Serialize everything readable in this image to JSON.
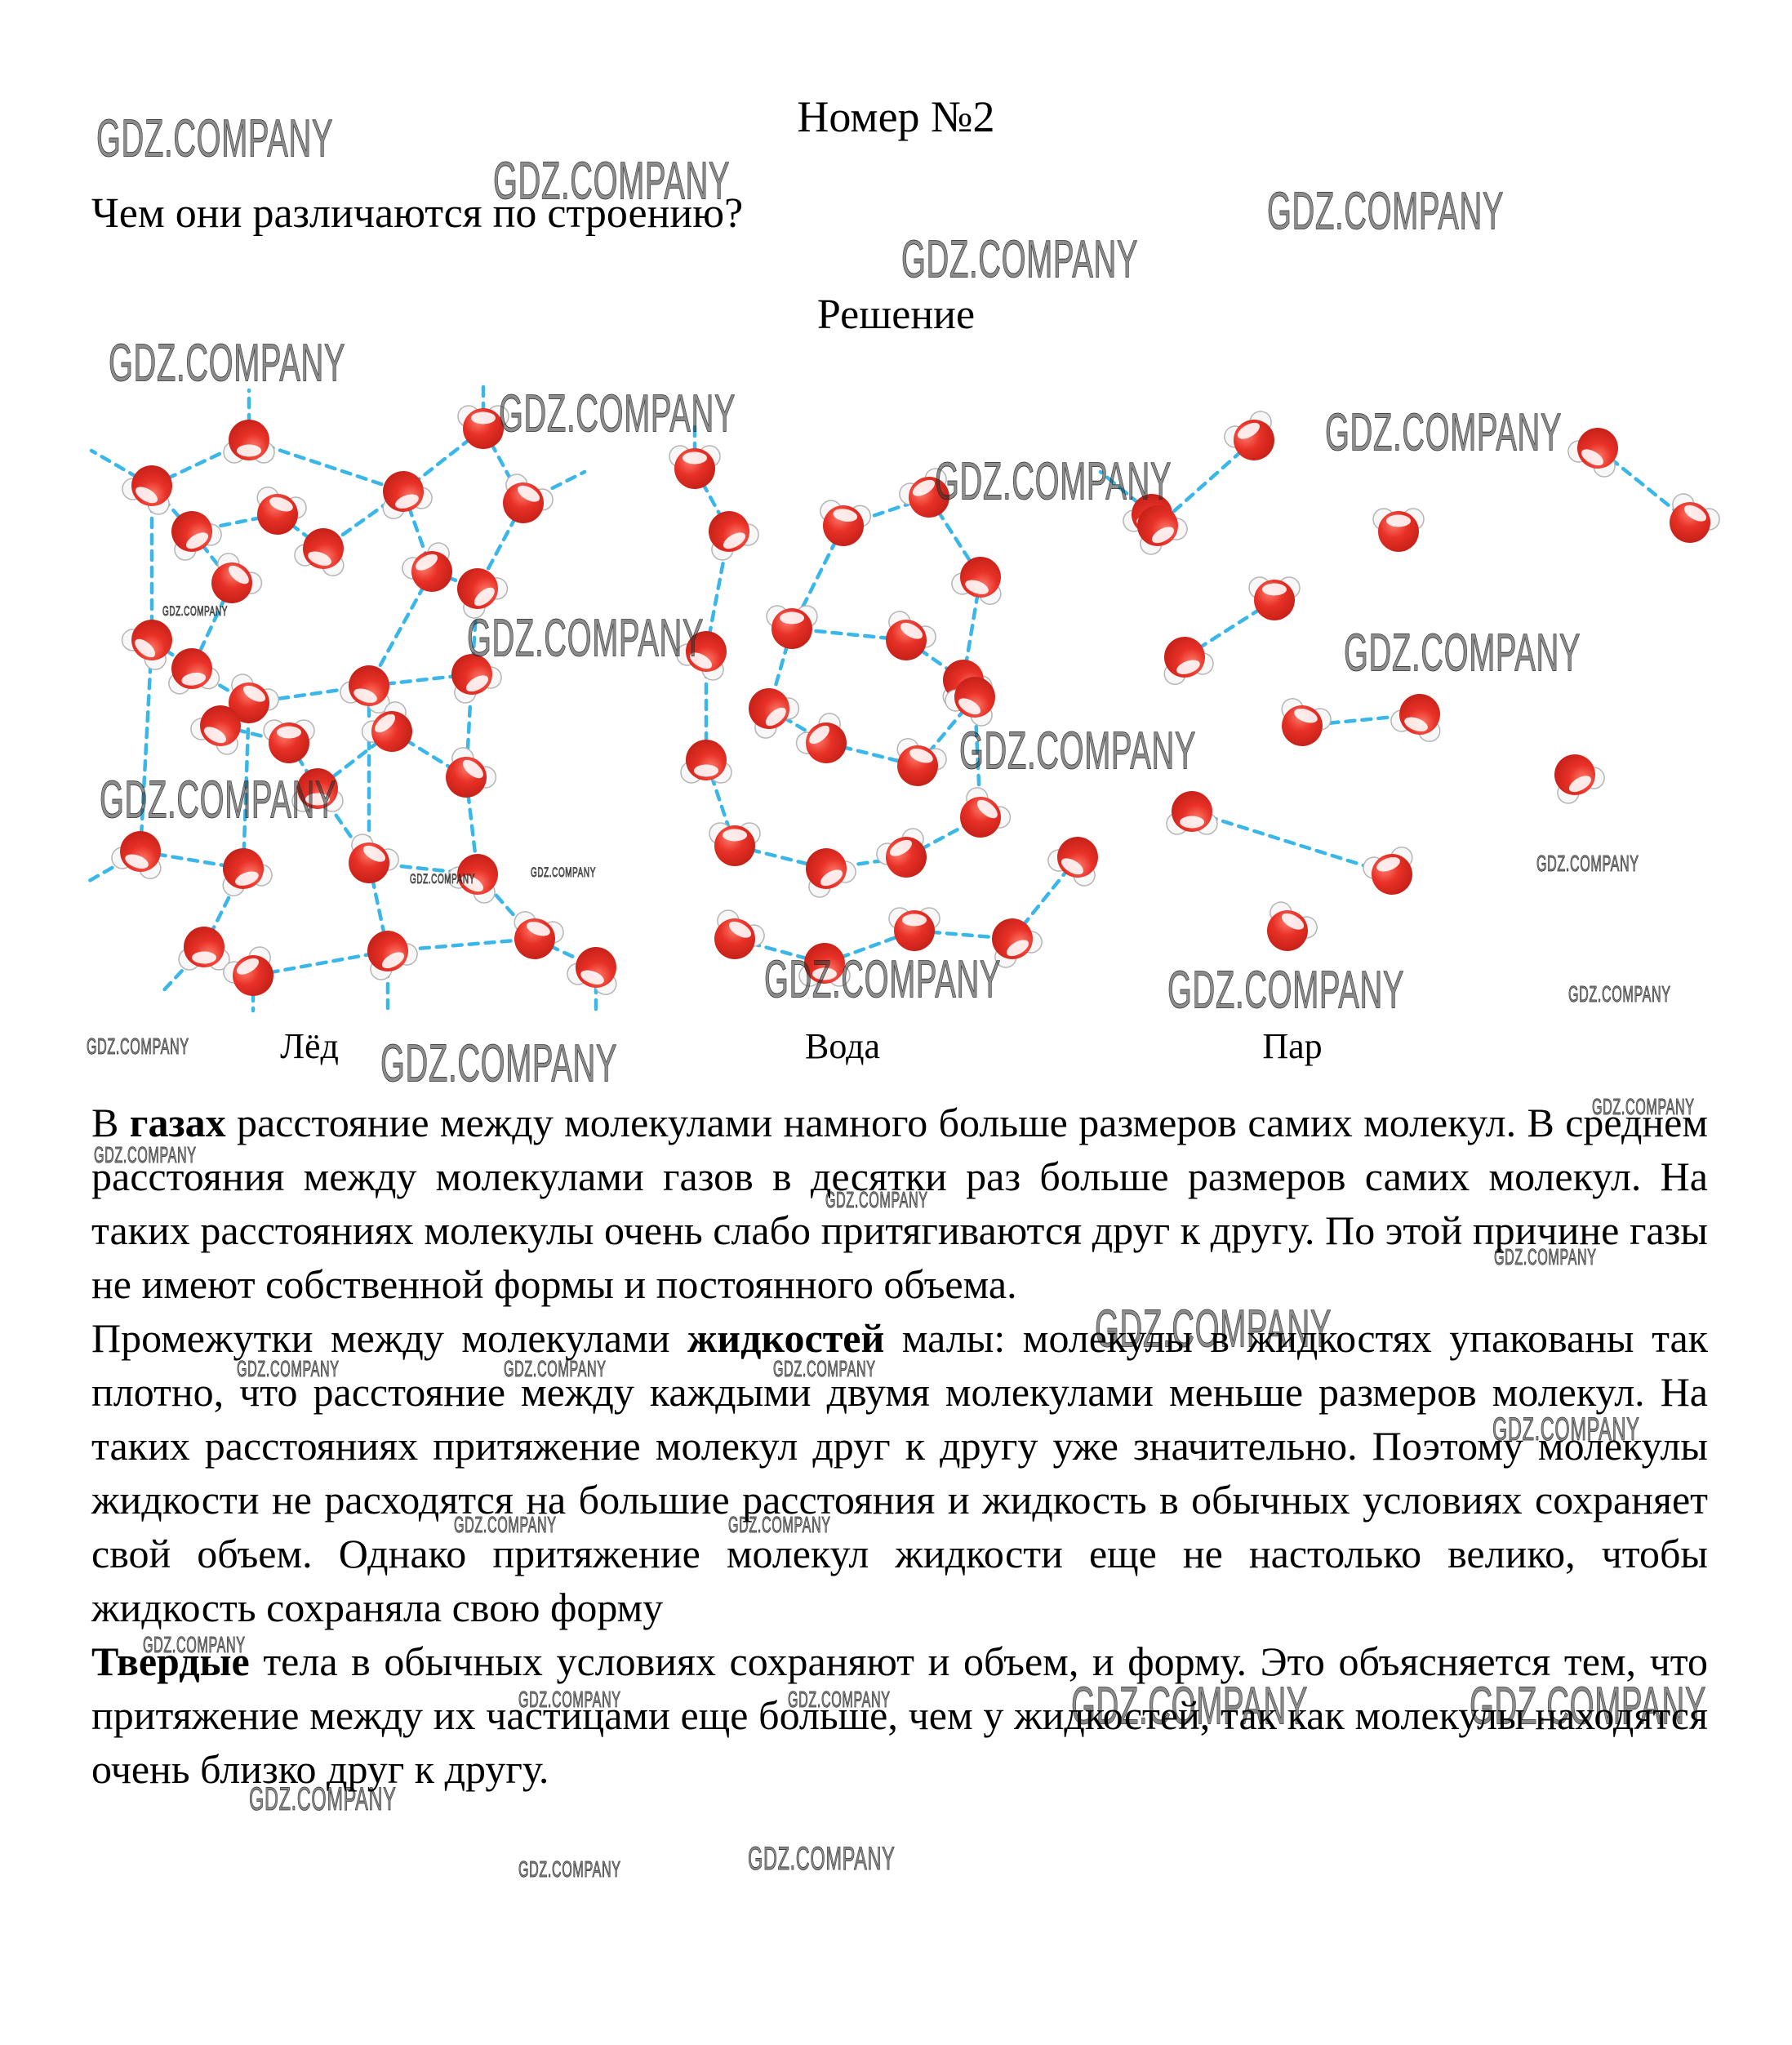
{
  "page": {
    "title": "Номер №2",
    "question": "Чем они различаются по строению?",
    "solution_heading": "Решение"
  },
  "watermarks": {
    "text": "GDZ.COMPANY",
    "positions": [
      [
        118,
        170,
        "lg"
      ],
      [
        604,
        222,
        "lg"
      ],
      [
        1552,
        259,
        "lg"
      ],
      [
        1104,
        318,
        "lg"
      ],
      [
        133,
        445,
        "lg"
      ],
      [
        611,
        507,
        "lg"
      ],
      [
        1623,
        530,
        "lg"
      ],
      [
        1145,
        590,
        "lg"
      ],
      [
        572,
        782,
        "lg"
      ],
      [
        1646,
        800,
        "lg"
      ],
      [
        1175,
        920,
        "lg"
      ],
      [
        122,
        980,
        "lg"
      ],
      [
        936,
        1200,
        "lg"
      ],
      [
        1430,
        1213,
        "lg"
      ],
      [
        466,
        1303,
        "lg"
      ],
      [
        1341,
        1628,
        "lg"
      ],
      [
        1312,
        2090,
        "lg"
      ],
      [
        1800,
        2090,
        "lg"
      ],
      [
        305,
        2205,
        "md"
      ],
      [
        916,
        2278,
        "md"
      ],
      [
        1828,
        1752,
        "md"
      ],
      [
        115,
        1415,
        "sm"
      ],
      [
        1011,
        1470,
        "sm"
      ],
      [
        1950,
        1356,
        "sm"
      ],
      [
        1830,
        1540,
        "sm"
      ],
      [
        290,
        1677,
        "sm"
      ],
      [
        617,
        1677,
        "sm"
      ],
      [
        947,
        1677,
        "sm"
      ],
      [
        556,
        1868,
        "sm"
      ],
      [
        892,
        1868,
        "sm"
      ],
      [
        175,
        2015,
        "sm"
      ],
      [
        635,
        2082,
        "sm"
      ],
      [
        965,
        2082,
        "sm"
      ],
      [
        635,
        2290,
        "sm"
      ],
      [
        1921,
        1218,
        "sm"
      ],
      [
        1882,
        1058,
        "sm"
      ],
      [
        106,
        1282,
        "sm"
      ],
      [
        199,
        750,
        "xs"
      ],
      [
        502,
        1078,
        "xs"
      ],
      [
        650,
        1070,
        "xs"
      ]
    ]
  },
  "diagram": {
    "labels": [
      {
        "text": "Лёд"
      },
      {
        "text": "Вода"
      },
      {
        "text": "Пар"
      }
    ],
    "colors": {
      "oxygen_light": "#ff7a6b",
      "oxygen": "#e83127",
      "oxygen_dark": "#c21f17",
      "hydrogen": "#f7f7f7",
      "hydrogen_stroke": "#b5b5b5",
      "bond": "#3ab7e8"
    },
    "panels": [
      {
        "name": "ice-panel",
        "molecules": [
          [
            305,
            79,
            180
          ],
          [
            186,
            135,
            210
          ],
          [
            592,
            65,
            0
          ],
          [
            494,
            142,
            160
          ],
          [
            340,
            170,
            20
          ],
          [
            235,
            191,
            150
          ],
          [
            396,
            212,
            200
          ],
          [
            641,
            156,
            30
          ],
          [
            529,
            240,
            330
          ],
          [
            585,
            261,
            140
          ],
          [
            284,
            254,
            40
          ],
          [
            186,
            324,
            220
          ],
          [
            235,
            359,
            170
          ],
          [
            452,
            380,
            200
          ],
          [
            305,
            401,
            30
          ],
          [
            578,
            366,
            150
          ],
          [
            270,
            429,
            210
          ],
          [
            354,
            450,
            0
          ],
          [
            480,
            436,
            320
          ],
          [
            389,
            506,
            180
          ],
          [
            571,
            492,
            40
          ],
          [
            172,
            583,
            200
          ],
          [
            298,
            604,
            160
          ],
          [
            452,
            597,
            30
          ],
          [
            585,
            611,
            210
          ],
          [
            250,
            700,
            180
          ],
          [
            310,
            735,
            330
          ],
          [
            475,
            705,
            150
          ],
          [
            655,
            690,
            20
          ],
          [
            730,
            725,
            200
          ]
        ],
        "bonds": [
          [
            0,
            1
          ],
          [
            0,
            3
          ],
          [
            2,
            3
          ],
          [
            2,
            7
          ],
          [
            3,
            6
          ],
          [
            3,
            8
          ],
          [
            1,
            5
          ],
          [
            4,
            5
          ],
          [
            4,
            6
          ],
          [
            5,
            10
          ],
          [
            7,
            9
          ],
          [
            8,
            9
          ],
          [
            8,
            13
          ],
          [
            9,
            15
          ],
          [
            10,
            12
          ],
          [
            11,
            12
          ],
          [
            1,
            11
          ],
          [
            12,
            14
          ],
          [
            13,
            14
          ],
          [
            13,
            15
          ],
          [
            13,
            18
          ],
          [
            14,
            16
          ],
          [
            16,
            17
          ],
          [
            17,
            19
          ],
          [
            18,
            19
          ],
          [
            18,
            20
          ],
          [
            15,
            20
          ],
          [
            19,
            23
          ],
          [
            20,
            24
          ],
          [
            21,
            22
          ],
          [
            21,
            11
          ],
          [
            22,
            14
          ],
          [
            23,
            24
          ],
          [
            23,
            13
          ],
          [
            22,
            25
          ],
          [
            25,
            26
          ],
          [
            26,
            27
          ],
          [
            27,
            23
          ],
          [
            27,
            28
          ],
          [
            28,
            29
          ],
          [
            28,
            24
          ]
        ],
        "dangling": [
          [
            305,
            79,
            305,
            18
          ],
          [
            592,
            65,
            592,
            8
          ],
          [
            186,
            135,
            112,
            92
          ],
          [
            641,
            156,
            716,
            118
          ],
          [
            172,
            583,
            104,
            622
          ],
          [
            250,
            700,
            196,
            758
          ],
          [
            310,
            735,
            310,
            778
          ],
          [
            475,
            705,
            475,
            775
          ],
          [
            730,
            725,
            730,
            778
          ]
        ]
      },
      {
        "name": "water-panel",
        "molecules": [
          [
            851,
            114,
            0
          ],
          [
            893,
            191,
            150
          ],
          [
            1033,
            184,
            10
          ],
          [
            1138,
            149,
            330
          ],
          [
            1201,
            247,
            200
          ],
          [
            1110,
            324,
            30
          ],
          [
            1180,
            373,
            160
          ],
          [
            865,
            338,
            210
          ],
          [
            970,
            310,
            0
          ],
          [
            942,
            408,
            140
          ],
          [
            1012,
            450,
            320
          ],
          [
            865,
            471,
            180
          ],
          [
            1124,
            478,
            20
          ],
          [
            1194,
            394,
            210
          ],
          [
            900,
            576,
            0
          ],
          [
            1012,
            604,
            150
          ],
          [
            1110,
            590,
            330
          ],
          [
            1201,
            541,
            40
          ],
          [
            1411,
            170,
            200
          ],
          [
            900,
            690,
            30
          ],
          [
            1010,
            720,
            180
          ],
          [
            1120,
            680,
            0
          ],
          [
            1240,
            690,
            150
          ],
          [
            1320,
            590,
            210
          ]
        ],
        "bonds": [
          [
            0,
            1
          ],
          [
            2,
            3
          ],
          [
            3,
            4
          ],
          [
            4,
            6
          ],
          [
            2,
            8
          ],
          [
            8,
            9
          ],
          [
            9,
            10
          ],
          [
            7,
            11
          ],
          [
            11,
            14
          ],
          [
            12,
            13
          ],
          [
            10,
            12
          ],
          [
            14,
            15
          ],
          [
            15,
            16
          ],
          [
            16,
            17
          ],
          [
            17,
            13
          ],
          [
            5,
            8
          ],
          [
            5,
            6
          ],
          [
            1,
            7
          ],
          [
            19,
            20
          ],
          [
            20,
            21
          ],
          [
            21,
            22
          ],
          [
            22,
            23
          ]
        ],
        "dangling": [
          [
            1411,
            170,
            1348,
            118
          ],
          [
            851,
            114,
            851,
            62
          ]
        ]
      },
      {
        "name": "vapor-panel",
        "molecules": [
          [
            1536,
            79,
            330
          ],
          [
            1418,
            184,
            150
          ],
          [
            1713,
            191,
            0
          ],
          [
            1957,
            89,
            210
          ],
          [
            2070,
            180,
            30
          ],
          [
            1561,
            275,
            0
          ],
          [
            1451,
            345,
            160
          ],
          [
            1739,
            415,
            200
          ],
          [
            1595,
            429,
            20
          ],
          [
            1460,
            534,
            180
          ],
          [
            1705,
            611,
            340
          ],
          [
            1929,
            489,
            150
          ],
          [
            1577,
            680,
            30
          ]
        ],
        "bonds": [
          [
            0,
            1
          ],
          [
            5,
            6
          ],
          [
            7,
            8
          ],
          [
            9,
            10
          ],
          [
            3,
            4
          ]
        ],
        "dangling": []
      }
    ]
  },
  "body": {
    "paragraphs": [
      {
        "segments": [
          {
            "text": "В ",
            "bold": false
          },
          {
            "text": "газах",
            "bold": true
          },
          {
            "text": " расстояние между молекулами намного больше размеров самих молекул. В среднем расстояния между молекулами газов в десятки раз больше размеров самих молекул. На таких расстояниях молекулы очень слабо притягиваются друг к другу. По этой причине газы не имеют собственной формы и постоянного объема.",
            "bold": false
          }
        ]
      },
      {
        "segments": [
          {
            "text": "Промежутки между молекулами ",
            "bold": false
          },
          {
            "text": "жидкостей",
            "bold": true
          },
          {
            "text": " малы: молекулы в жидкостях упакованы так плотно, что расстояние между каждыми двумя молекулами меньше размеров молекул. На таких расстояниях притяжение молекул друг к другу уже значительно. Поэтому молекулы жидкости не расходятся на большие расстояния и жидкость в обычных условиях сохраняет свой объем. Однако притяжение молекул жидкости еще не настолько велико, чтобы жидкость сохраняла свою форму",
            "bold": false
          }
        ]
      },
      {
        "segments": [
          {
            "text": "Твердые",
            "bold": true
          },
          {
            "text": " тела в обычных условиях сохраняют и объем, и форму. Это объясняется тем, что притяжение между их частицами еще больше, чем у жидкостей, так как молекулы находятся очень близко друг к другу.",
            "bold": false
          }
        ]
      }
    ]
  }
}
